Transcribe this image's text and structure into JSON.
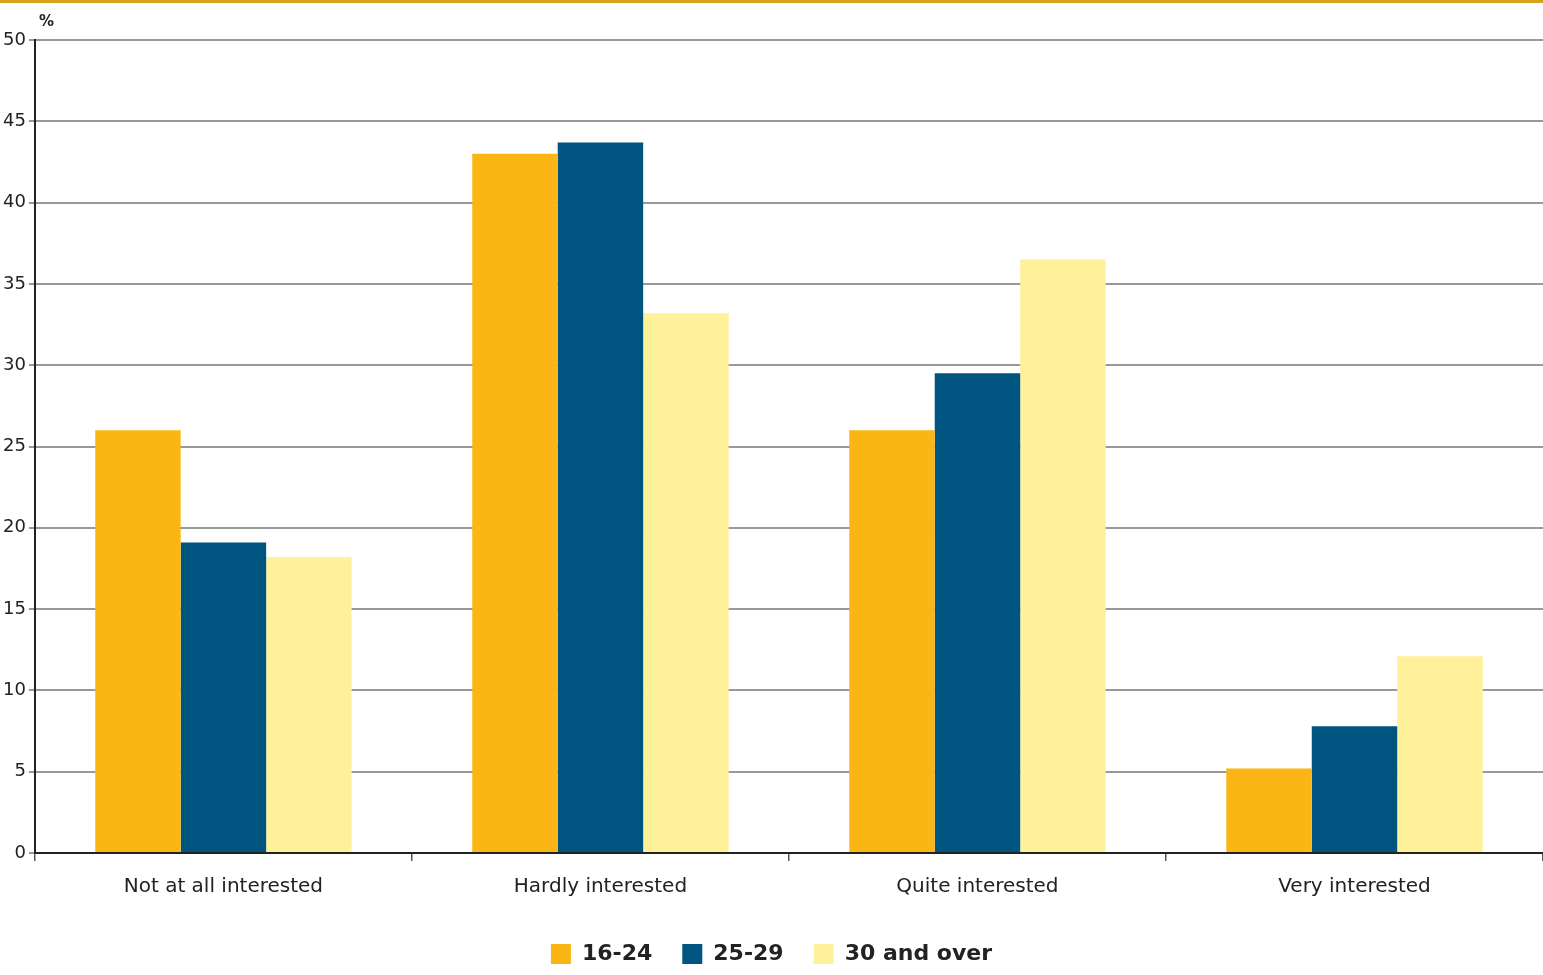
{
  "chart_data": {
    "type": "bar",
    "ylabel": "%",
    "categories": [
      "Not at all interested",
      "Hardly interested",
      "Quite interested",
      "Very interested"
    ],
    "series": [
      {
        "name": "16-24",
        "color": "#fbb615",
        "values": [
          26.0,
          43.0,
          26.0,
          5.2
        ]
      },
      {
        "name": "25-29",
        "color": "#005580",
        "values": [
          19.1,
          43.7,
          29.5,
          7.8
        ]
      },
      {
        "name": "30 and over",
        "color": "#fff09a",
        "values": [
          18.2,
          33.2,
          36.5,
          12.1
        ]
      }
    ],
    "ylim": [
      0,
      50
    ],
    "yticks": [
      0,
      5,
      10,
      15,
      20,
      25,
      30,
      35,
      40,
      45,
      50
    ],
    "grid": "y",
    "legend": "bottom"
  }
}
